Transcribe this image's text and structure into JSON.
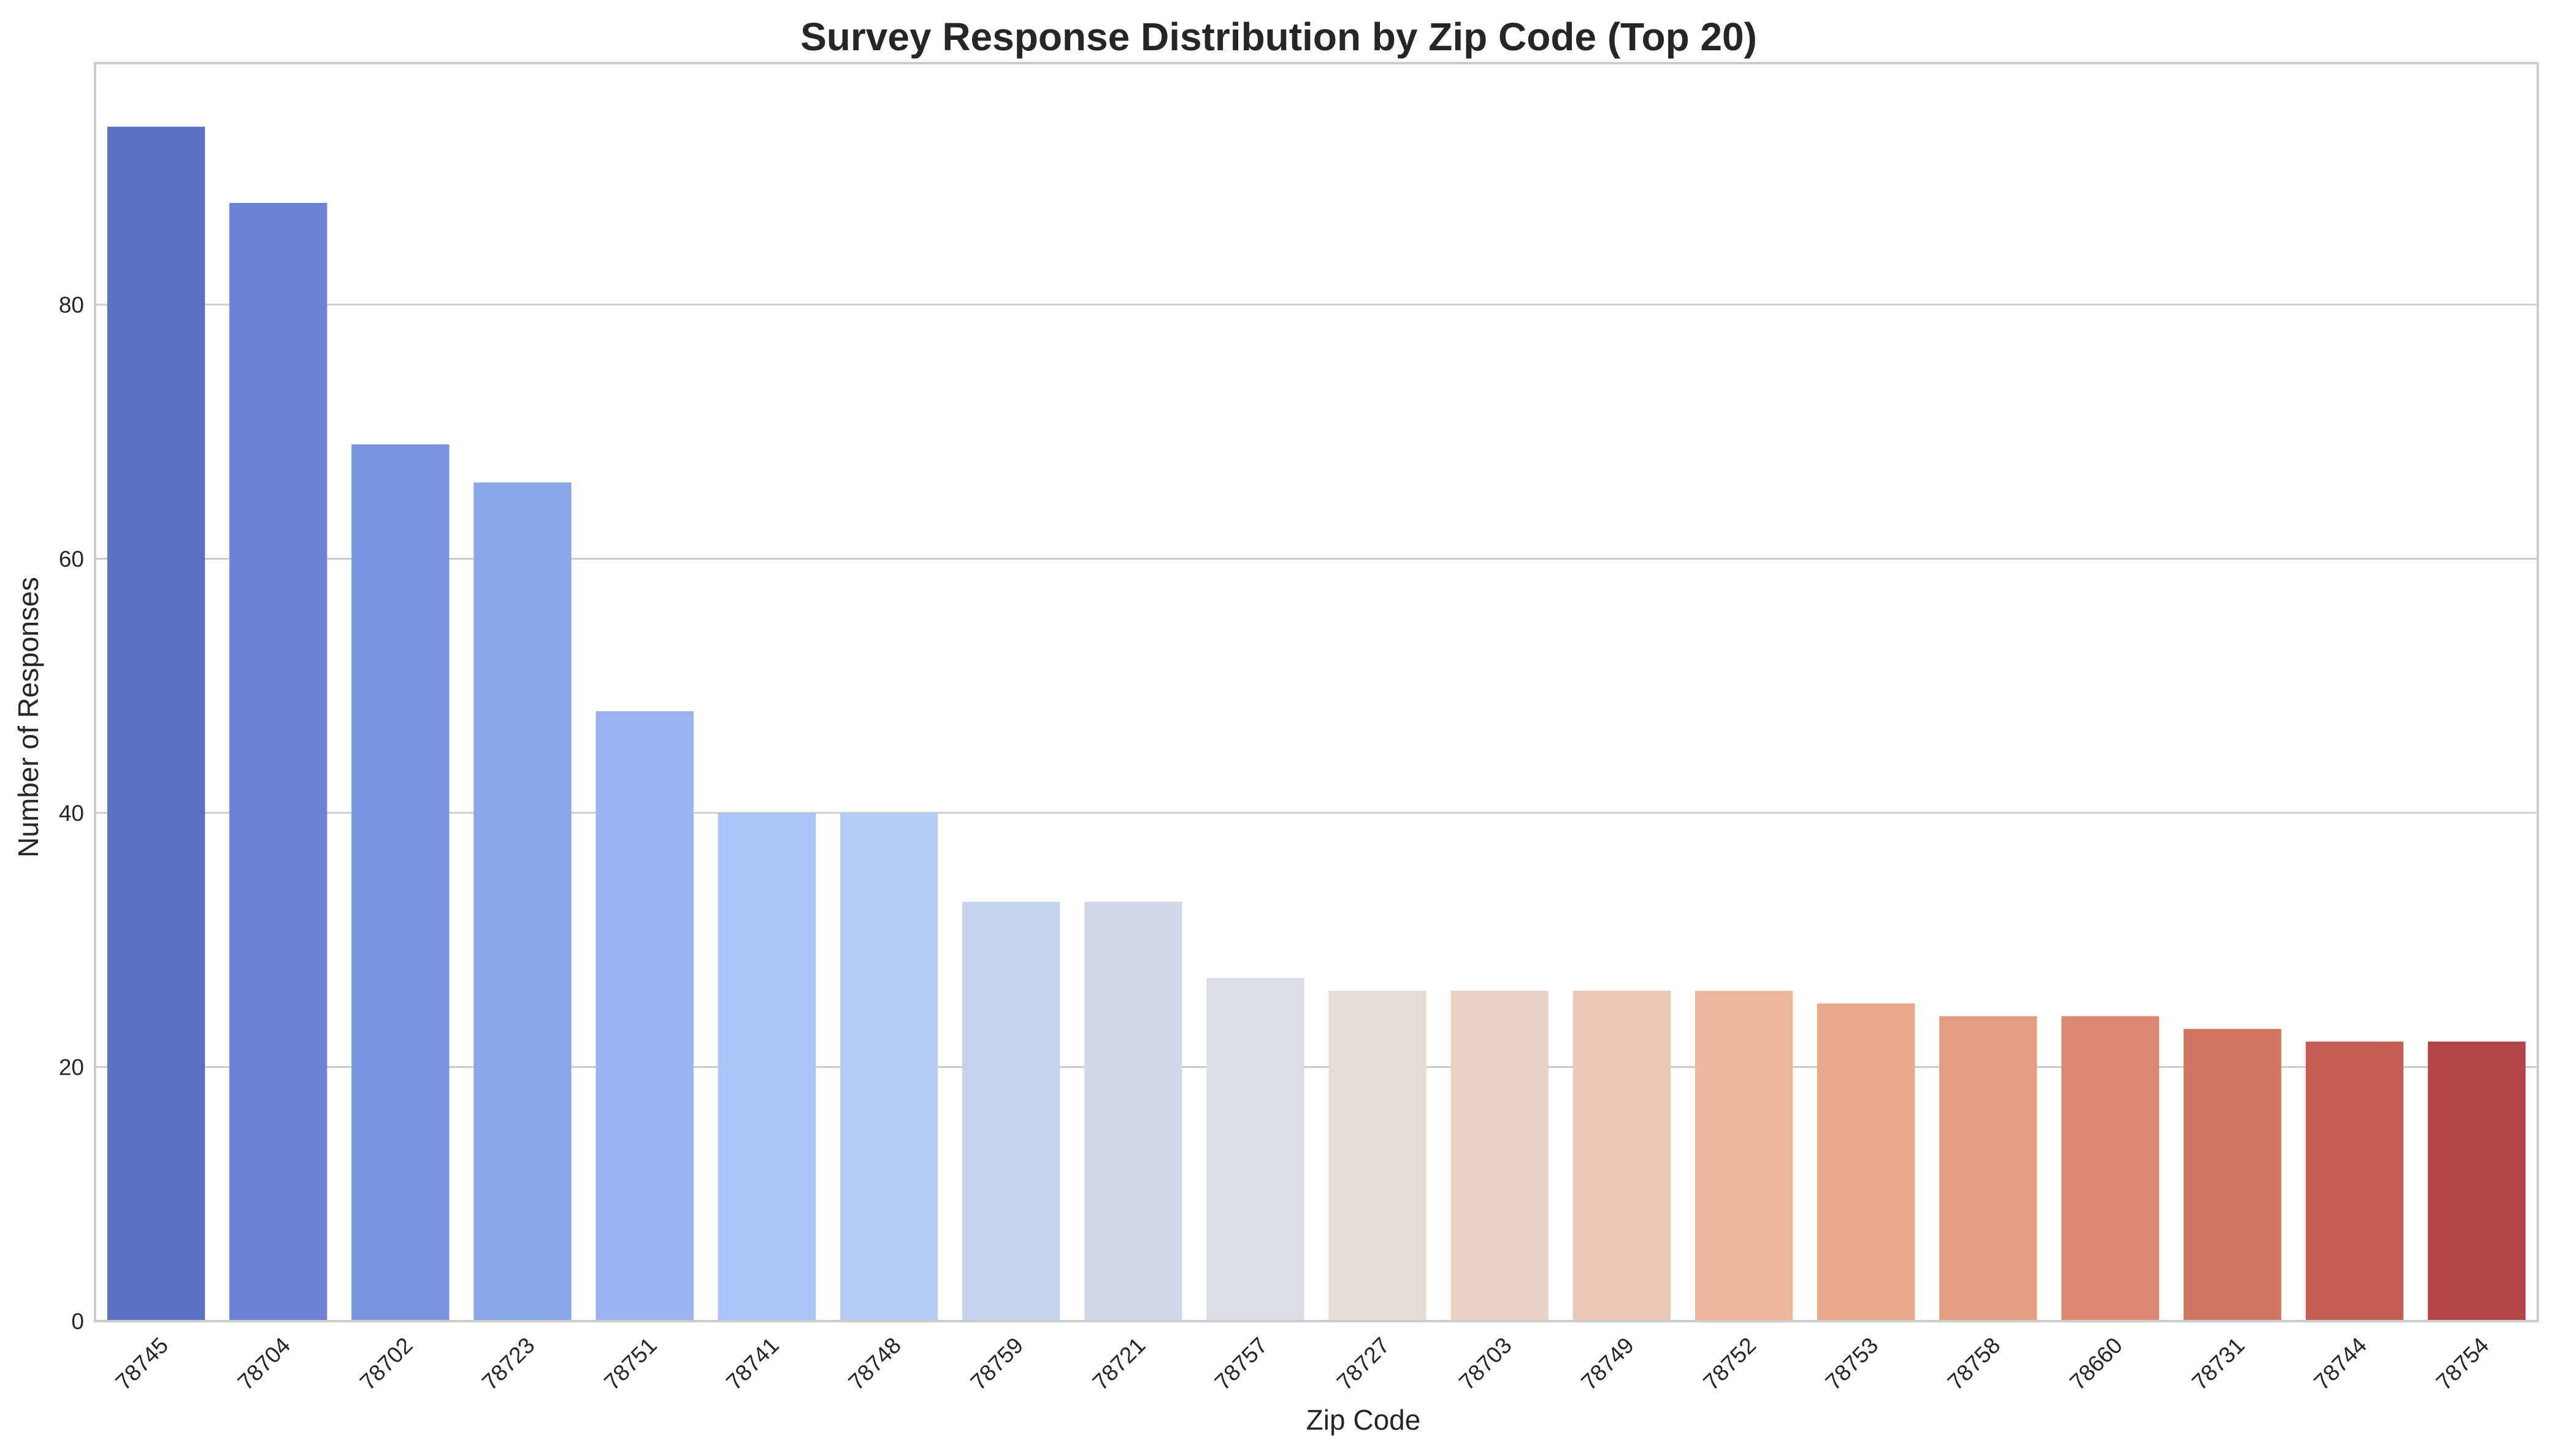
{
  "chart_data": {
    "type": "bar",
    "title": "Survey Response Distribution by Zip Code (Top 20)",
    "xlabel": "Zip Code",
    "ylabel": "Number of Responses",
    "categories": [
      "78745",
      "78704",
      "78702",
      "78723",
      "78751",
      "78741",
      "78748",
      "78759",
      "78721",
      "78757",
      "78727",
      "78703",
      "78749",
      "78752",
      "78753",
      "78758",
      "78660",
      "78731",
      "78744",
      "78754"
    ],
    "values": [
      94,
      88,
      69,
      66,
      48,
      40,
      40,
      33,
      33,
      27,
      26,
      26,
      26,
      26,
      25,
      24,
      24,
      23,
      22,
      22
    ],
    "colors": [
      "#5b6fc4",
      "#6b81d5",
      "#7b94de",
      "#8aa6e9",
      "#9ab3ef",
      "#aac4f5",
      "#b8cbf3",
      "#c5d3ee",
      "#d0d9e9",
      "#dcdde4",
      "#e3dcd8",
      "#e9d2c6",
      "#ecc8b8",
      "#edb89e",
      "#eaa88e",
      "#e39b82",
      "#db8872",
      "#d27563",
      "#c55f55",
      "#b34446"
    ],
    "ylim": [
      0,
      99
    ],
    "yticks": [
      0,
      20,
      40,
      60,
      80
    ],
    "grid": "y"
  }
}
